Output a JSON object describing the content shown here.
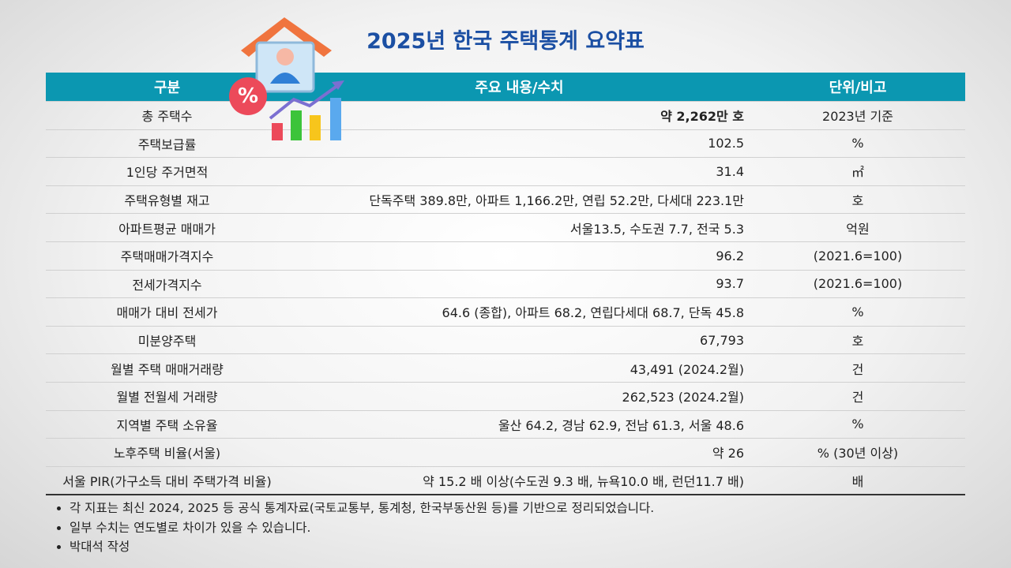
{
  "header": {
    "title": "2025년 한국 주택통계 요약표"
  },
  "table": {
    "headers": [
      "구분",
      "주요 내용/수치",
      "단위/비고"
    ],
    "rows": [
      [
        "총 주택수",
        "약 2,262만 호",
        "2023년 기준"
      ],
      [
        "주택보급률",
        "102.5",
        "%"
      ],
      [
        "1인당 주거면적",
        "31.4",
        "㎡"
      ],
      [
        "주택유형별 재고",
        "단독주택 389.8만, 아파트 1,166.2만, 연립 52.2만, 다세대 223.1만",
        "호"
      ],
      [
        "아파트평균 매매가",
        "서울13.5, 수도권 7.7, 전국 5.3",
        "억원"
      ],
      [
        "주택매매가격지수",
        "96.2",
        "(2021.6=100)"
      ],
      [
        "전세가격지수",
        "93.7",
        "(2021.6=100)"
      ],
      [
        "매매가 대비 전세가",
        "64.6 (종합), 아파트 68.2, 연립다세대 68.7, 단독 45.8",
        "%"
      ],
      [
        "미분양주택",
        "67,793",
        "호"
      ],
      [
        "월별 주택 매매거래량",
        "43,491 (2024.2월)",
        "건"
      ],
      [
        "월별 전월세 거래량",
        "262,523 (2024.2월)",
        "건"
      ],
      [
        "지역별 주택 소유율",
        "울산 64.2, 경남 62.9, 전남 61.3, 서울 48.6",
        "%"
      ],
      [
        "노후주택 비율(서울)",
        "약 26",
        "% (30년 이상)"
      ],
      [
        "서울 PIR(가구소득 대비 주택가격 비율)",
        "약 15.2 배 이상(수도권 9.3 배, 뉴욕10.0 배, 런던11.7 배)",
        "배"
      ]
    ]
  },
  "notes": [
    "각 지표는 최신 2024, 2025 등 공식 통계자료(국토교통부, 통계청, 한국부동산원 등)를 기반으로 정리되었습니다.",
    "일부 수치는 연도별로 차이가 있을 수 있습니다.",
    "박대석 작성"
  ]
}
